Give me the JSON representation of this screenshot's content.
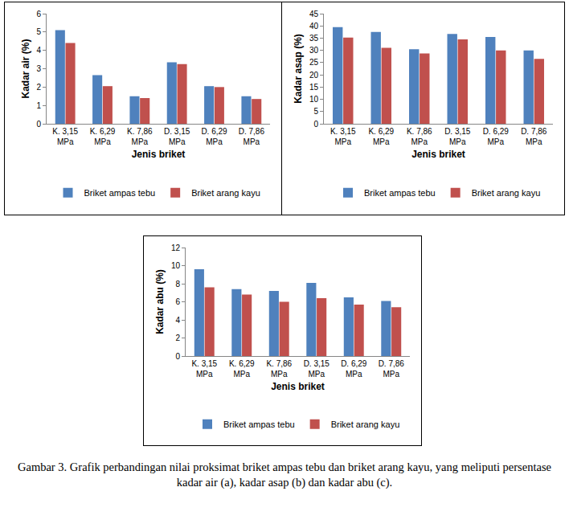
{
  "chart_data": [
    {
      "type": "bar",
      "x_label": "Jenis briket",
      "y_label": "Kadar air (%)",
      "categories": [
        "K. 3,15 MPa",
        "K. 6,29 MPa",
        "K. 7,86 MPa",
        "D. 3,15 MPa",
        "D. 6,29 MPa",
        "D. 7,86 MPa"
      ],
      "series": [
        {
          "name": "Briket ampas tebu",
          "color": "#4f81bd",
          "values": [
            5.1,
            2.65,
            1.5,
            3.35,
            2.05,
            1.5
          ]
        },
        {
          "name": "Briket arang kayu",
          "color": "#c0504d",
          "values": [
            4.4,
            2.05,
            1.4,
            3.25,
            2.0,
            1.35
          ]
        }
      ],
      "ylim": [
        0,
        6
      ],
      "yticks": [
        0,
        1,
        2,
        3,
        4,
        5,
        6
      ],
      "grid": false,
      "legend": "bottom"
    },
    {
      "type": "bar",
      "x_label": "Jenis briket",
      "y_label": "Kadar asap (%)",
      "categories": [
        "K. 3,15 MPa",
        "K. 6,29 MPa",
        "K. 7,86 MPa",
        "D. 3,15 MPa",
        "D. 6,29 MPa",
        "D. 7,86 MPa"
      ],
      "series": [
        {
          "name": "Briket ampas tebu",
          "color": "#4f81bd",
          "values": [
            39.5,
            37.5,
            30.5,
            36.7,
            35.5,
            30
          ]
        },
        {
          "name": "Briket arang kayu",
          "color": "#c0504d",
          "values": [
            35.2,
            31,
            28.7,
            34.5,
            30,
            26.5
          ]
        }
      ],
      "ylim": [
        0,
        45
      ],
      "yticks": [
        0,
        5,
        10,
        15,
        20,
        25,
        30,
        35,
        40,
        45
      ],
      "grid": false,
      "legend": "bottom"
    },
    {
      "type": "bar",
      "x_label": "Jenis briket",
      "y_label": "Kadar abu (%)",
      "categories": [
        "K. 3,15 MPa",
        "K. 6,29 MPa",
        "K. 7,86 MPa",
        "D. 3,15 MPa",
        "D. 6,29 MPa",
        "D. 7,86 MPa"
      ],
      "series": [
        {
          "name": "Briket ampas tebu",
          "color": "#4f81bd",
          "values": [
            9.6,
            7.4,
            7.2,
            8.1,
            6.5,
            6.1
          ]
        },
        {
          "name": "Briket arang kayu",
          "color": "#c0504d",
          "values": [
            7.6,
            6.8,
            6.0,
            6.4,
            5.7,
            5.4
          ]
        }
      ],
      "ylim": [
        0,
        12
      ],
      "yticks": [
        0,
        2,
        4,
        6,
        8,
        10,
        12
      ],
      "grid": false,
      "legend": "bottom"
    }
  ],
  "caption": "Gambar 3. Grafik perbandingan nilai proksimat briket ampas tebu dan briket arang kayu,  yang meliputi persentase kadar air (a), kadar asap (b) dan kadar abu (c)."
}
